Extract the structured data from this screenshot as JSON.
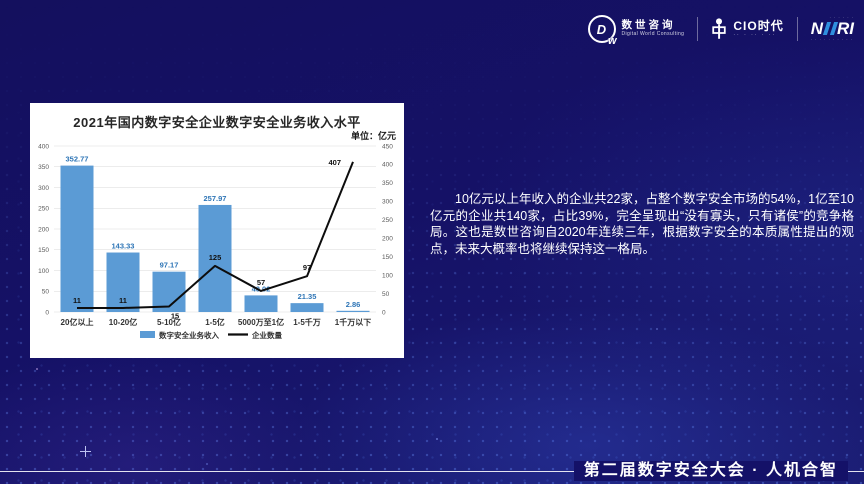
{
  "logos": {
    "dw": {
      "monogram": "D",
      "monogram_sub": "w",
      "name": "数世咨询",
      "subtitle": "Digital World Consulting"
    },
    "cio": {
      "name": "CIO时代",
      "tagline": "·· · ·· · ··"
    },
    "niiri": {
      "left": "N",
      "right": "RI",
      "caption_top": "· · · · · ·",
      "caption_bottom": "· · · · · · · · · ·"
    }
  },
  "chart_data": {
    "type": "bar+line combo",
    "title": "2021年国内数字安全企业数字安全业务收入水平",
    "unit_label": "单位：亿元",
    "categories": [
      "20亿以上",
      "10-20亿",
      "5-10亿",
      "1-5亿",
      "5000万至1亿",
      "1-5千万",
      "1千万以下"
    ],
    "series": [
      {
        "name": "数字安全业务收入",
        "type": "bar",
        "axis": "left",
        "color": "#5B9BD5",
        "values": [
          352.77,
          143.33,
          97.17,
          257.97,
          40.02,
          21.35,
          2.86
        ]
      },
      {
        "name": "企业数量",
        "type": "line",
        "axis": "right",
        "color": "#0d0d0d",
        "values": [
          11,
          11,
          15,
          125,
          57,
          97,
          407
        ]
      }
    ],
    "left_axis": {
      "min": 0,
      "max": 400,
      "step": 50
    },
    "right_axis": {
      "min": 0,
      "max": 450,
      "step": 50
    },
    "grid": "horizontal",
    "legend_position": "bottom",
    "colors": {
      "bar": "#5B9BD5",
      "bar_label": "#2E75B6",
      "line": "#0d0d0d",
      "panel": "#ffffff"
    }
  },
  "paragraph": {
    "text": "10亿元以上年收入的企业共22家，占整个数字安全市场的54%，1亿至10亿元的企业共140家，占比39%，完全呈现出“没有寡头，只有诸侯”的竞争格局。这也是数世咨询自2020年连续三年，根据数字安全的本质属性提出的观点，未来大概率也将继续保持这一格局。"
  },
  "footer": {
    "title": "第二届数字安全大会 · 人机合智"
  }
}
